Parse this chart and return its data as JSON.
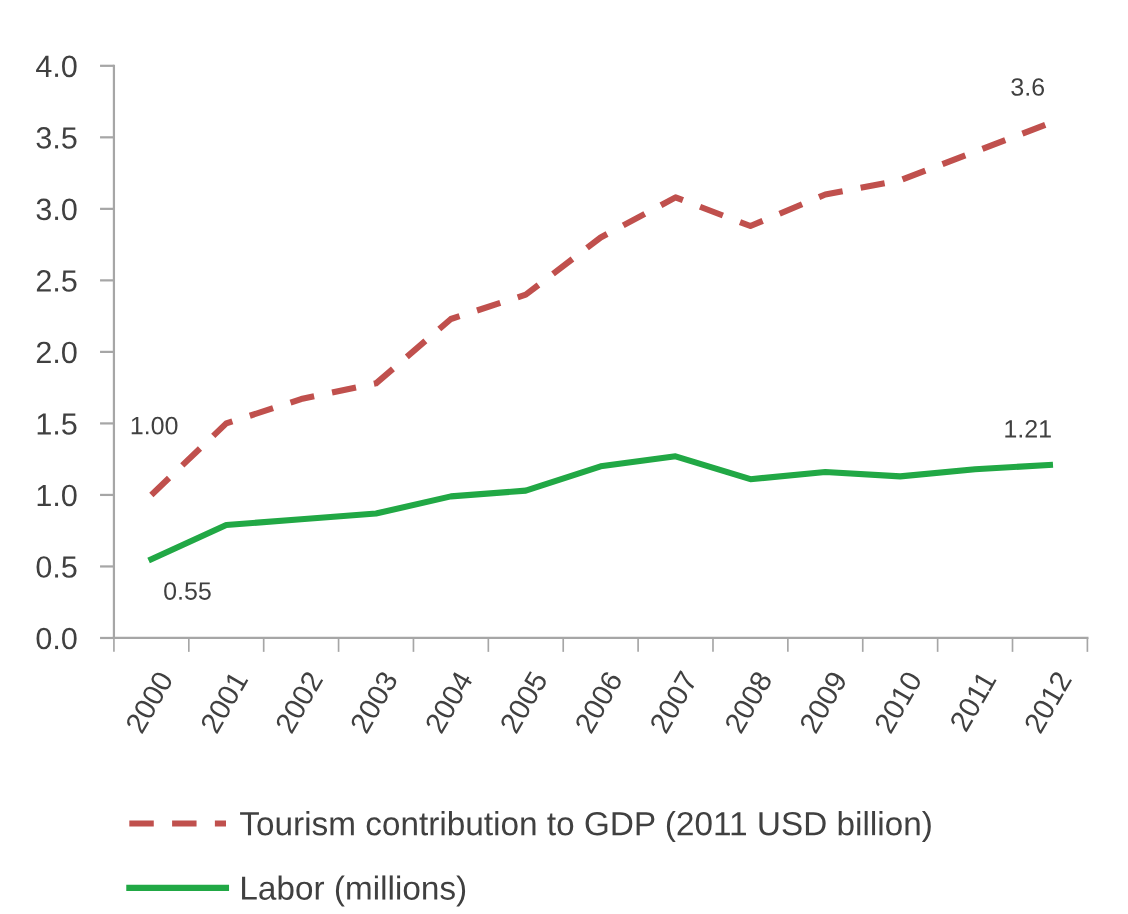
{
  "chart_data": {
    "type": "line",
    "categories": [
      "2000",
      "2001",
      "2002",
      "2003",
      "2004",
      "2005",
      "2006",
      "2007",
      "2008",
      "2009",
      "2010",
      "2011",
      "2012"
    ],
    "series": [
      {
        "name": "Tourism contribution to GDP (2011 USD billion)",
        "color": "#c0504d",
        "line_style": "dashed",
        "values": [
          1.0,
          1.5,
          1.67,
          1.78,
          2.23,
          2.4,
          2.8,
          3.08,
          2.88,
          3.1,
          3.2,
          3.4,
          3.6
        ],
        "value_labels": [
          "1.00",
          null,
          null,
          null,
          null,
          null,
          null,
          null,
          null,
          null,
          null,
          null,
          "3.6"
        ]
      },
      {
        "name": "Labor (millions)",
        "color": "#21a845",
        "line_style": "solid",
        "values": [
          0.55,
          0.79,
          0.83,
          0.87,
          0.99,
          1.03,
          1.2,
          1.27,
          1.11,
          1.16,
          1.13,
          1.18,
          1.21
        ],
        "value_labels": [
          "0.55",
          null,
          null,
          null,
          null,
          null,
          null,
          null,
          null,
          null,
          null,
          null,
          "1.21"
        ]
      }
    ],
    "ylim": [
      0.0,
      4.0
    ],
    "yticks": [
      {
        "value": 0,
        "label": "0.0"
      },
      {
        "value": 0.5,
        "label": "0.5"
      },
      {
        "value": 1,
        "label": "1.0"
      },
      {
        "value": 1.5,
        "label": "1.5"
      },
      {
        "value": 2,
        "label": "2.0"
      },
      {
        "value": 2.5,
        "label": "2.5"
      },
      {
        "value": 3,
        "label": "3.0"
      },
      {
        "value": 3.5,
        "label": "3.5"
      },
      {
        "value": 4,
        "label": "4.0"
      }
    ],
    "grid": false,
    "legend": "bottom",
    "marker": "none"
  }
}
